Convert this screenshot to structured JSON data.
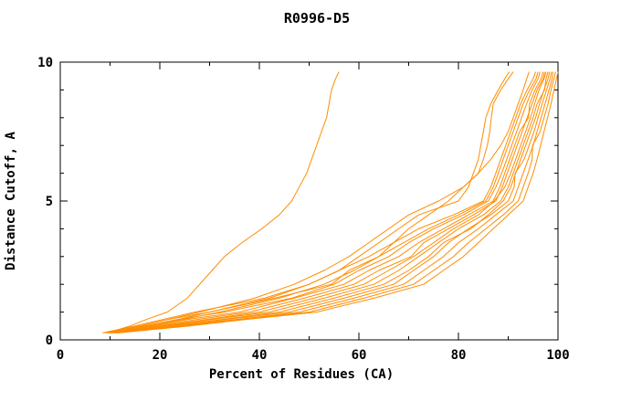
{
  "chart_data": {
    "type": "line",
    "title": "R0996-D5",
    "xlabel": "Percent of Residues (CA)",
    "ylabel": "Distance Cutoff, A",
    "xlim": [
      0,
      100
    ],
    "ylim": [
      0,
      10
    ],
    "x_major_ticks": [
      0,
      20,
      40,
      60,
      80,
      100
    ],
    "x_minor_ticks": [
      10,
      30,
      50,
      70,
      90
    ],
    "y_major_ticks": [
      0,
      5,
      10
    ],
    "y_minor_ticks": [
      1,
      2,
      3,
      4,
      6,
      7,
      8,
      9
    ],
    "grid": false,
    "legend": "none",
    "line_color": "#ff8c00",
    "axis_color": "#000000",
    "shared_y_distances": [
      0.25,
      0.5,
      0.75,
      1.0,
      1.5,
      2.0,
      2.5,
      3.0,
      3.5,
      4.0,
      4.5,
      5.0,
      5.5,
      6.0,
      6.5,
      7.0,
      7.5,
      8.0,
      8.5,
      9.0,
      9.4,
      9.65
    ],
    "series": [
      {
        "values": [
          9.5,
          14,
          17.5,
          21.5,
          25.5,
          28,
          30.5,
          33,
          36.5,
          40.5,
          44,
          46.5,
          48,
          49.5,
          50.5,
          51.5,
          52.5,
          53.5,
          54,
          54.5,
          55.3,
          56
        ]
      },
      {
        "values": [
          10,
          17,
          24,
          30,
          42,
          50,
          56,
          60,
          64,
          68,
          72,
          80,
          82,
          83,
          84,
          84.5,
          85,
          85.5,
          86.5,
          88,
          89.3,
          90.2
        ]
      },
      {
        "values": [
          9.5,
          16,
          22,
          28,
          39,
          47,
          53,
          58,
          62,
          66,
          70,
          76,
          81,
          84,
          85,
          85.8,
          86.3,
          86.6,
          87,
          88.5,
          90,
          91
        ]
      },
      {
        "values": [
          10,
          18,
          25,
          32,
          44,
          53,
          59,
          64,
          67,
          70,
          74,
          78,
          81,
          84,
          86.5,
          88.5,
          90,
          91,
          92,
          93,
          93.7,
          94.2
        ]
      },
      {
        "values": [
          8.5,
          15,
          21,
          27,
          41,
          50,
          56,
          62,
          67,
          72,
          79,
          85,
          86.5,
          87.5,
          88.5,
          89.5,
          90.5,
          91.5,
          92.5,
          93.8,
          95,
          95.5
        ]
      },
      {
        "values": [
          9,
          16,
          22,
          30,
          43,
          54.5,
          58,
          64,
          69,
          74,
          80,
          85.5,
          87,
          88,
          89,
          90,
          91,
          92,
          93,
          94.3,
          95.6,
          96
        ]
      },
      {
        "values": [
          9.5,
          17,
          24,
          33,
          46.5,
          55,
          60,
          66,
          70,
          75,
          81,
          86,
          87.5,
          88.7,
          89.7,
          90.7,
          91.7,
          92.7,
          93.7,
          94.8,
          96,
          96.4
        ]
      },
      {
        "values": [
          10,
          18,
          26,
          36,
          47,
          57,
          62,
          68,
          72,
          77,
          82,
          87,
          88.3,
          89.3,
          90.3,
          91.3,
          92.3,
          94.1,
          94.3,
          95.4,
          96.6,
          97
        ]
      },
      {
        "values": [
          10,
          19,
          28,
          38,
          49,
          59,
          64,
          70.5,
          73,
          78,
          83,
          87.5,
          88.8,
          89.8,
          90.8,
          91.8,
          92.8,
          93.8,
          94.8,
          95.8,
          97,
          97.3
        ]
      },
      {
        "values": [
          10.5,
          20,
          30,
          40,
          51,
          61,
          66,
          71,
          75,
          79,
          84,
          87.2,
          89.3,
          90.5,
          91.5,
          92.5,
          93.5,
          94.5,
          95.3,
          96.2,
          97.2,
          97.6
        ]
      },
      {
        "values": [
          10.5,
          21,
          31,
          42,
          53,
          63,
          68,
          72,
          76,
          80,
          85,
          88.5,
          90,
          91,
          92,
          93,
          94,
          95,
          95.8,
          97.3,
          97.6,
          98
        ]
      },
      {
        "values": [
          11,
          22,
          33,
          44,
          55,
          65,
          70,
          74,
          77,
          82.5,
          86,
          89,
          90.5,
          91.5,
          92.5,
          93.5,
          94.5,
          95.5,
          96.3,
          97.2,
          98,
          98.3
        ]
      },
      {
        "values": [
          11,
          23,
          34,
          46,
          57,
          67,
          71,
          75,
          78,
          82,
          86.5,
          90,
          91.2,
          91.4,
          93.2,
          94.2,
          95.2,
          96,
          96.8,
          97.7,
          98.4,
          98.7
        ]
      },
      {
        "values": [
          11,
          24,
          36,
          48,
          59,
          69,
          73,
          77,
          80,
          84,
          87.5,
          91,
          92,
          93,
          94,
          95,
          95.8,
          96.6,
          97.4,
          98.2,
          98.8,
          99
        ]
      },
      {
        "values": [
          11.5,
          25,
          37,
          50,
          61,
          71,
          75,
          79,
          82,
          85.5,
          89,
          92,
          93,
          94,
          94.8,
          94.9,
          96.4,
          97.2,
          98,
          98.6,
          99.2,
          99.5
        ]
      },
      {
        "values": [
          11.5,
          26,
          38,
          51.5,
          63,
          73,
          77,
          81,
          84,
          87,
          90,
          93,
          94,
          95,
          95.8,
          96.5,
          97.2,
          97.9,
          98.6,
          99.2,
          99.7,
          100
        ]
      }
    ]
  }
}
